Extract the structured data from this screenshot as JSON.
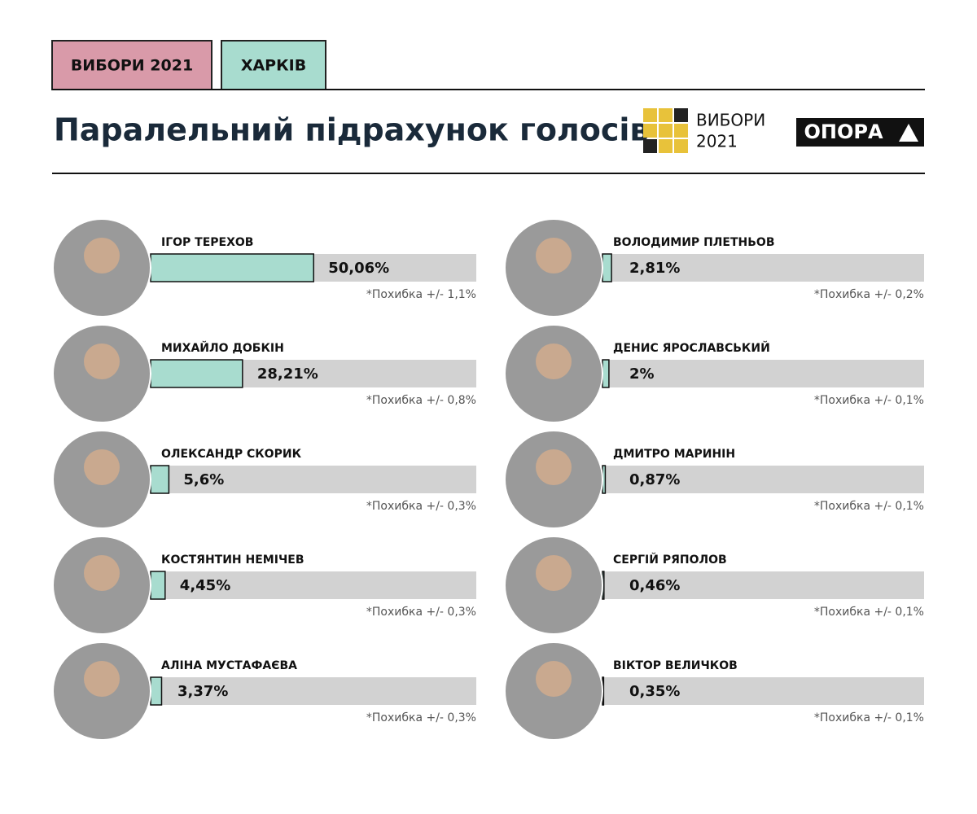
{
  "header": {
    "tags": [
      "ВИБОРИ 2021",
      "ХАРКІВ"
    ],
    "logo_text": [
      "ВИБОРИ",
      "2021"
    ],
    "brand": "ОПОРА"
  },
  "chart_data": {
    "type": "bar",
    "orientation": "horizontal",
    "title": "Паралельний підрахунок голосів",
    "categories": [
      "ІГОР ТЕРЕХОВ",
      "МИХАЙЛО ДОБКІН",
      "ОЛЕКСАНДР СКОРИК",
      "КОСТЯНТИН НЕМІЧЕВ",
      "АЛІНА МУСТАФАЄВА",
      "ВОЛОДИМИР ПЛЕТНЬОВ",
      "ДЕНИС ЯРОСЛАВСЬКИЙ",
      "ДМИТРО МАРИНІН",
      "СЕРГІЙ РЯПОЛОВ",
      "ВІКТОР ВЕЛИЧКОВ"
    ],
    "values": [
      50.06,
      28.21,
      5.6,
      4.45,
      3.37,
      2.81,
      2,
      0.87,
      0.46,
      0.35
    ],
    "value_labels": [
      "50,06%",
      "28,21%",
      "5,6%",
      "4,45%",
      "3,37%",
      "2,81%",
      "2%",
      "0,87%",
      "0,46%",
      "0,35%"
    ],
    "margins": [
      "*Похибка +/- 1,1%",
      "*Похибка +/- 0,8%",
      "*Похибка +/- 0,3%",
      "*Похибка +/- 0,3%",
      "*Похибка +/- 0,3%",
      "*Похибка +/- 0,2%",
      "*Похибка +/- 0,1%",
      "*Похибка +/- 0,1%",
      "*Похибка +/- 0,1%",
      "*Похибка +/- 0,1%"
    ],
    "xlim": [
      0,
      100
    ],
    "color": "#a8dccf",
    "track_color": "#d2d2d2"
  }
}
